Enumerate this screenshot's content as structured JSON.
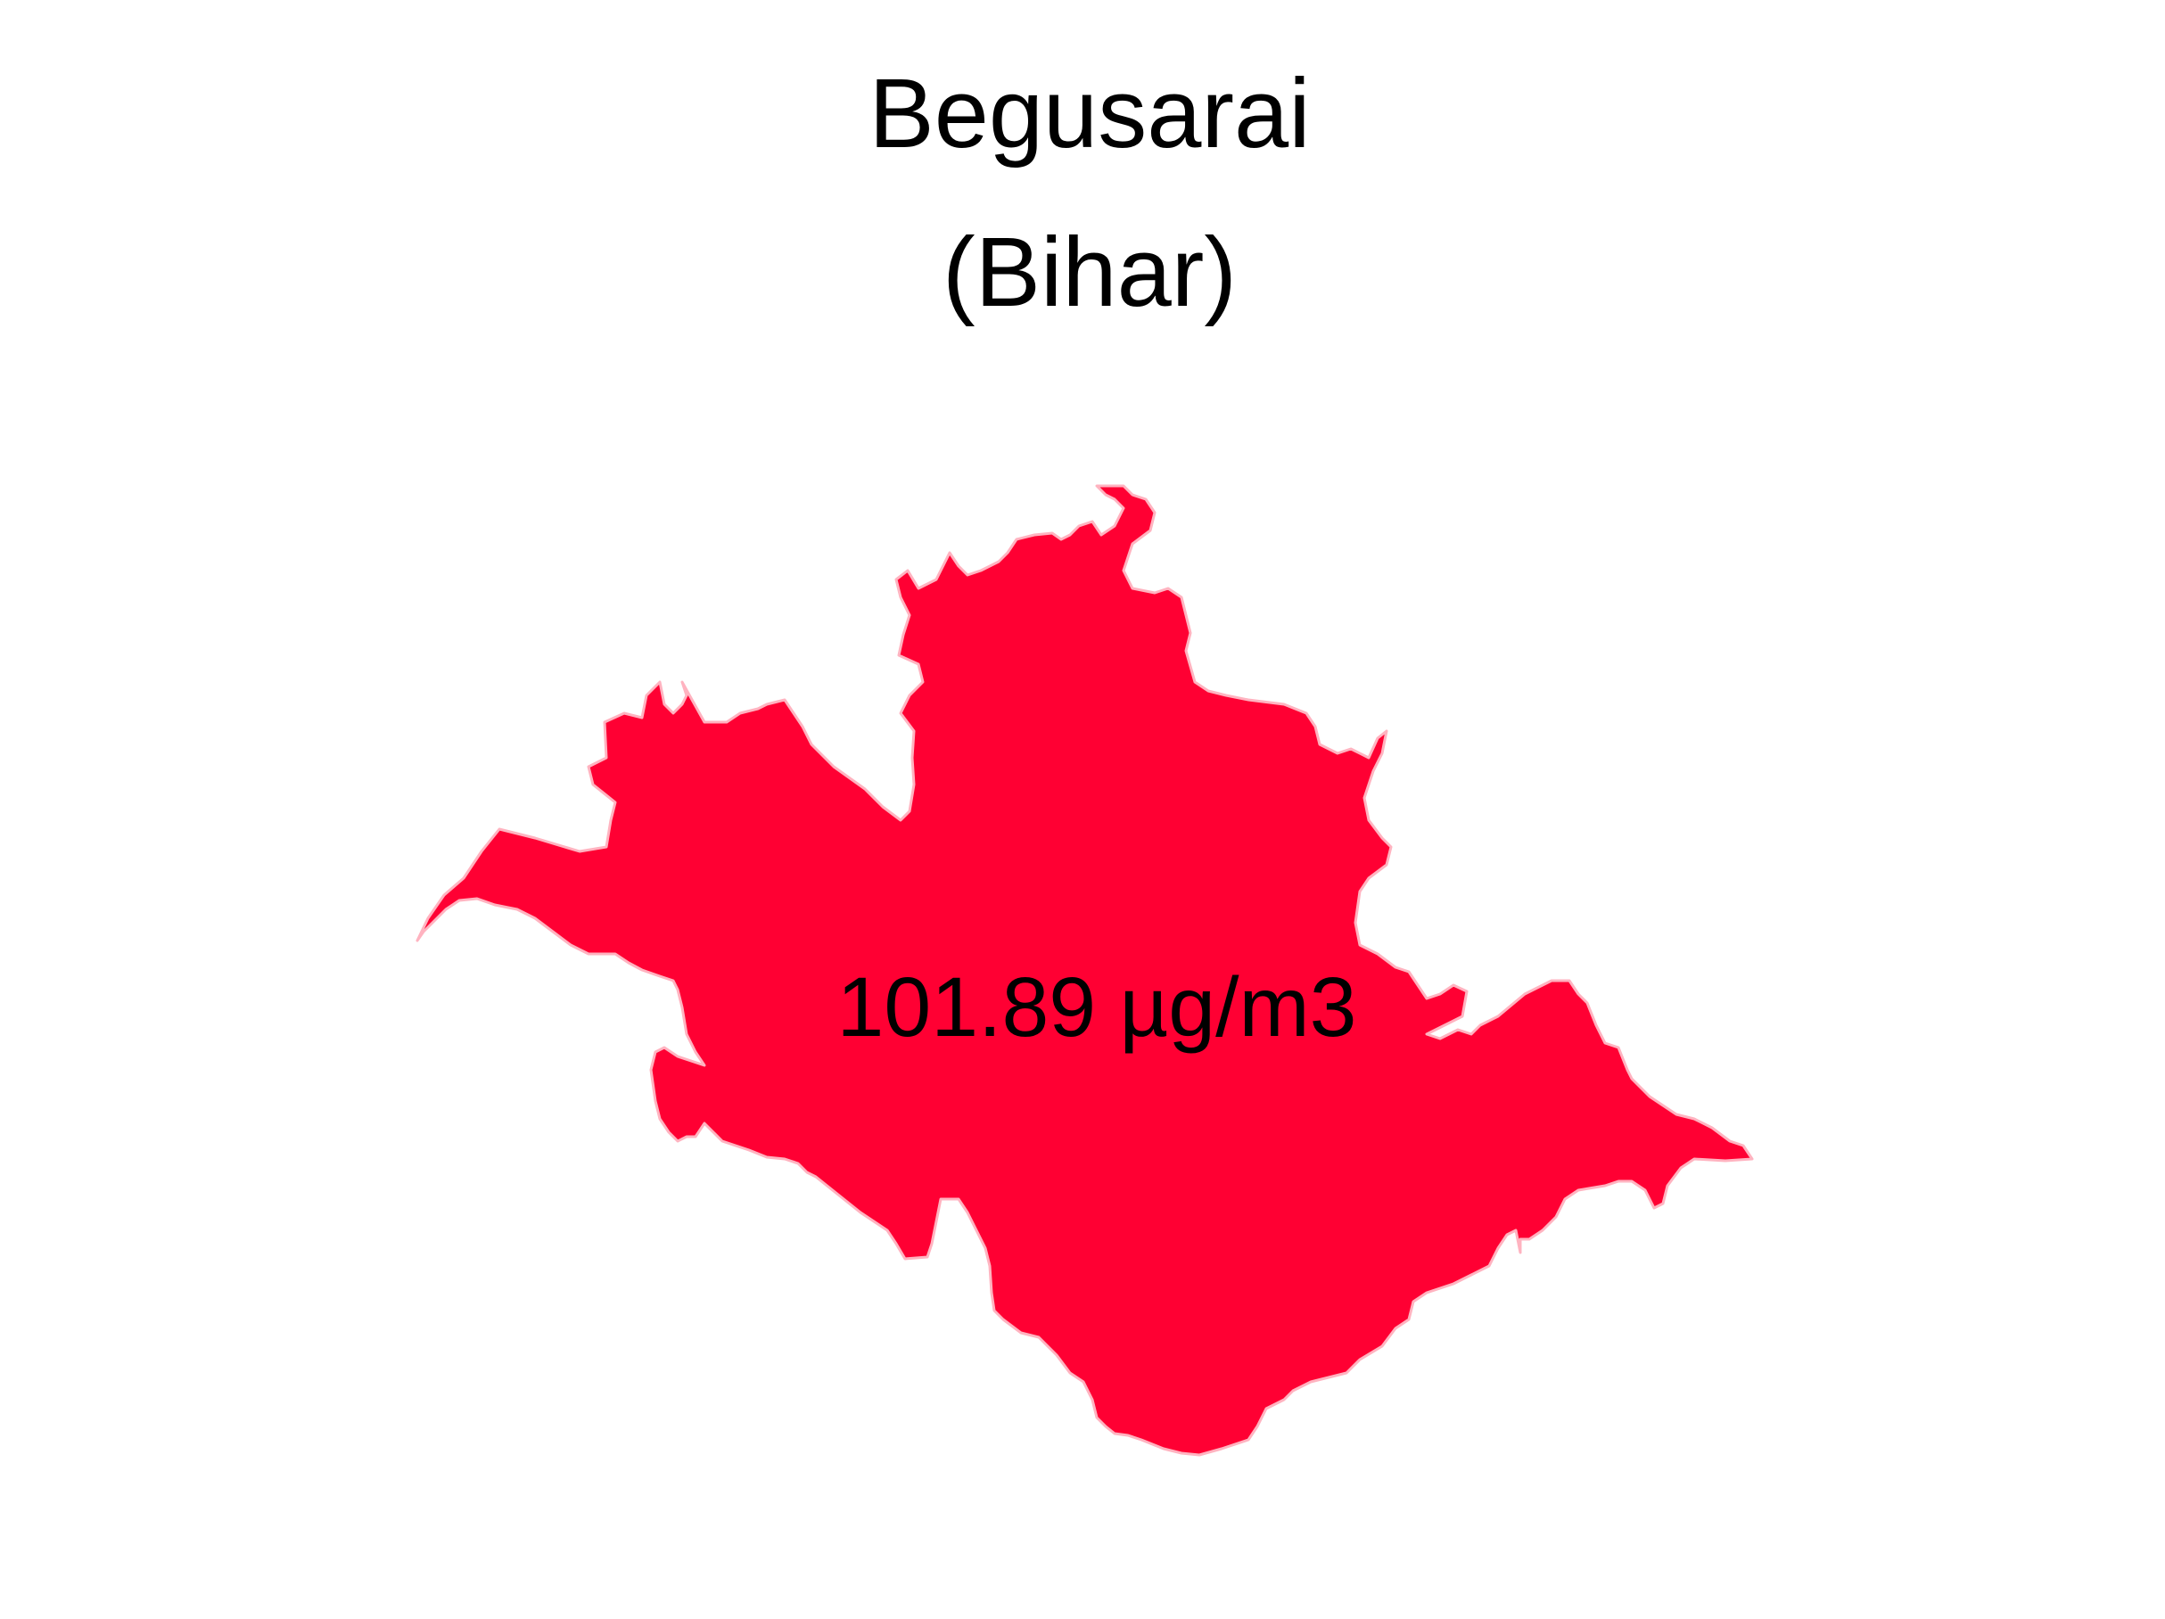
{
  "map": {
    "district": "Begusarai",
    "state": "(Bihar)",
    "value_label": "101.89 µg/m3",
    "fill_color": "#FF0033",
    "outline_color": "#FFB3C0",
    "background_color": "#FFFFFF"
  }
}
